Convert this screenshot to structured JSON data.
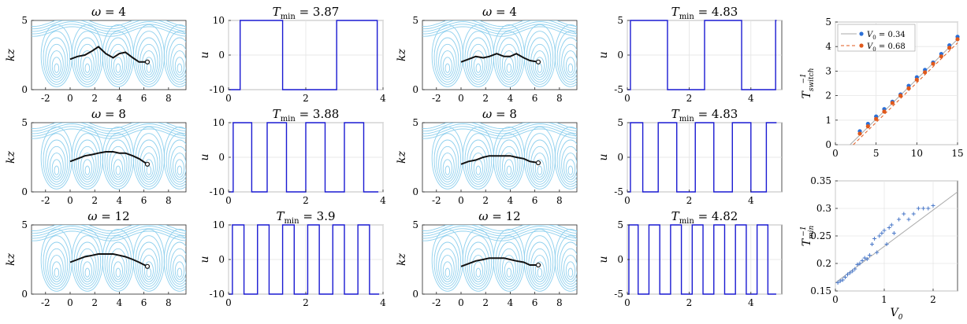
{
  "figure": {
    "title": "",
    "rows": [
      {
        "phase_a": {
          "title": "ω = 4",
          "ylabel": "kz",
          "yticks": [
            "5",
            "0"
          ],
          "xticks": [
            "-2",
            "0",
            "2",
            "4",
            "6",
            "8"
          ]
        },
        "control_a": {
          "title": "T_min = 3.87",
          "ylabel": "u",
          "yticks": [
            "10",
            "0",
            "-10"
          ],
          "xticks": [
            "0",
            "2",
            "4"
          ]
        },
        "phase_b": {
          "title": "ω = 4",
          "ylabel": "kz",
          "yticks": [
            "5",
            "0"
          ],
          "xticks": [
            "-2",
            "0",
            "2",
            "4",
            "6",
            "8"
          ]
        },
        "control_b": {
          "title": "T_min = 4.83",
          "ylabel": "u",
          "yticks": [
            "5",
            "0",
            "-5"
          ],
          "xticks": [
            "0",
            "2",
            "4"
          ]
        }
      },
      {
        "phase_a": {
          "title": "ω = 8",
          "ylabel": "kz",
          "yticks": [
            "5",
            "0"
          ],
          "xticks": [
            "-2",
            "0",
            "2",
            "4",
            "6",
            "8"
          ]
        },
        "control_a": {
          "title": "T_min = 3.88",
          "ylabel": "u",
          "yticks": [
            "10",
            "0",
            "-10"
          ],
          "xticks": [
            "0",
            "2",
            "4"
          ]
        },
        "phase_b": {
          "title": "ω = 8",
          "ylabel": "kz",
          "yticks": [
            "5",
            "0"
          ],
          "xticks": [
            "-2",
            "0",
            "2",
            "4",
            "6",
            "8"
          ]
        },
        "control_b": {
          "title": "T_min = 4.83",
          "ylabel": "u",
          "yticks": [
            "5",
            "0",
            "-5"
          ],
          "xticks": [
            "0",
            "2",
            "4"
          ]
        }
      },
      {
        "phase_a": {
          "title": "ω = 12",
          "ylabel": "kz",
          "yticks": [
            "5",
            "0"
          ],
          "xticks": [
            "-2",
            "0",
            "2",
            "4",
            "6",
            "8"
          ]
        },
        "control_a": {
          "title": "T_min = 3.9",
          "ylabel": "u",
          "yticks": [
            "10",
            "0",
            "-10"
          ],
          "xticks": [
            "0",
            "2",
            "4"
          ]
        },
        "phase_b": {
          "title": "ω = 12",
          "ylabel": "kz",
          "yticks": [
            "5",
            "0"
          ],
          "xticks": [
            "-2",
            "0",
            "2",
            "4",
            "6",
            "8"
          ]
        },
        "control_b": {
          "title": "T_min = 4.82",
          "ylabel": "u",
          "yticks": [
            "5",
            "0",
            "-5"
          ],
          "xticks": [
            "0",
            "2",
            "4"
          ]
        }
      }
    ],
    "colors": {
      "streamline": "#8fd0ee",
      "control": "#1a1ad2",
      "trajectory": "#111111",
      "series1": "#2b6fd6",
      "series2": "#e0591c",
      "fit": "#aaaaaa",
      "scatter": "#4a78c8"
    }
  },
  "chart_data": [
    {
      "type": "line",
      "panel": "phase portraits (kx vs kz), columns 1 and 3",
      "xlim": [
        -3.14,
        9.42
      ],
      "ylim": [
        0,
        5
      ],
      "trajectories": [
        {
          "omega": 4,
          "x": [
            0,
            0.6,
            1.2,
            1.8,
            2.3,
            2.9,
            3.5,
            4.0,
            4.5,
            5.1,
            5.6,
            6.28
          ],
          "y_left": [
            2.2,
            2.4,
            2.5,
            2.8,
            3.1,
            2.6,
            2.3,
            2.6,
            2.7,
            2.3,
            2.0,
            2.0
          ],
          "y_right": [
            2.0,
            2.2,
            2.4,
            2.3,
            2.4,
            2.6,
            2.4,
            2.4,
            2.6,
            2.3,
            2.1,
            2.0
          ]
        },
        {
          "omega": 8,
          "x": [
            0,
            0.6,
            1.2,
            1.8,
            2.3,
            2.9,
            3.5,
            4.0,
            4.5,
            5.1,
            5.6,
            6.28
          ],
          "y_left": [
            2.2,
            2.4,
            2.6,
            2.7,
            2.8,
            2.9,
            2.9,
            2.8,
            2.8,
            2.6,
            2.4,
            2.0
          ],
          "y_right": [
            2.0,
            2.2,
            2.3,
            2.5,
            2.6,
            2.6,
            2.6,
            2.6,
            2.5,
            2.4,
            2.2,
            2.1
          ]
        },
        {
          "omega": 12,
          "x": [
            0,
            0.6,
            1.2,
            1.8,
            2.3,
            2.9,
            3.5,
            4.0,
            4.5,
            5.1,
            5.6,
            6.28
          ],
          "y_left": [
            2.3,
            2.5,
            2.7,
            2.8,
            2.9,
            2.9,
            2.9,
            2.8,
            2.7,
            2.5,
            2.3,
            2.0
          ],
          "y_right": [
            2.0,
            2.2,
            2.4,
            2.5,
            2.6,
            2.6,
            2.6,
            2.5,
            2.4,
            2.3,
            2.1,
            2.1
          ]
        }
      ]
    },
    {
      "type": "line",
      "panel": "bang-bang controls u(t), columns 2 and 4",
      "controls": [
        {
          "title": "T_min = 3.87",
          "amp": 10,
          "xlim": [
            0,
            4
          ],
          "switches": [
            0.3,
            1.4,
            2.8,
            3.85
          ],
          "start": -1,
          "end": 3.87
        },
        {
          "title": "T_min = 3.88",
          "amp": 10,
          "xlim": [
            0,
            4
          ],
          "switches": [
            0.12,
            0.6,
            1.0,
            1.5,
            2.0,
            2.5,
            3.0,
            3.5
          ],
          "start": -1,
          "end": 3.88
        },
        {
          "title": "T_min = 3.9",
          "amp": 10,
          "xlim": [
            0,
            4
          ],
          "switches": [
            0.1,
            0.4,
            0.75,
            1.05,
            1.4,
            1.7,
            2.05,
            2.35,
            2.7,
            3.0,
            3.35,
            3.65
          ],
          "start": -1,
          "end": 3.9
        },
        {
          "title": "T_min = 4.83",
          "amp": 5,
          "xlim": [
            0,
            5
          ],
          "switches": [
            0.1,
            1.3,
            2.5,
            3.7,
            4.8
          ],
          "start": -1,
          "end": 4.83
        },
        {
          "title": "T_min = 4.83",
          "amp": 5,
          "xlim": [
            0,
            5
          ],
          "switches": [
            0.1,
            0.5,
            1.0,
            1.6,
            2.2,
            2.8,
            3.4,
            4.0,
            4.5
          ],
          "start": -1,
          "end": 4.83
        },
        {
          "title": "T_min = 4.82",
          "amp": 5,
          "xlim": [
            0,
            5
          ],
          "switches": [
            0.05,
            0.35,
            0.7,
            1.05,
            1.4,
            1.75,
            2.1,
            2.45,
            2.8,
            3.15,
            3.5,
            3.85,
            4.2,
            4.55
          ],
          "start": -1,
          "end": 4.82
        }
      ]
    },
    {
      "type": "scatter",
      "xlabel": "",
      "ylabel": "T_switch^-1",
      "xlim": [
        0,
        15
      ],
      "ylim": [
        0,
        5
      ],
      "xticks": [
        "0",
        "5",
        "10",
        "15"
      ],
      "yticks": [
        "0",
        "1",
        "2",
        "3",
        "4",
        "5"
      ],
      "legend_position": "top-left",
      "series": [
        {
          "name": "V_0 = 0.34",
          "x": [
            3,
            4,
            5,
            6,
            7,
            8,
            9,
            10,
            11,
            12,
            13,
            14,
            15
          ],
          "y": [
            0.55,
            0.85,
            1.15,
            1.45,
            1.75,
            2.05,
            2.4,
            2.75,
            3.05,
            3.35,
            3.7,
            4.05,
            4.4
          ],
          "fit_x": [
            1.8,
            15
          ],
          "fit_y": [
            0,
            4.3
          ]
        },
        {
          "name": "V_0 = 0.68",
          "x": [
            3,
            4,
            5,
            6,
            7,
            8,
            9,
            10,
            11,
            12,
            13,
            14,
            15
          ],
          "y": [
            0.45,
            0.75,
            1.05,
            1.35,
            1.7,
            2.0,
            2.3,
            2.65,
            2.95,
            3.3,
            3.6,
            3.95,
            4.3
          ],
          "fit_x": [
            2.2,
            15
          ],
          "fit_y": [
            0,
            4.15
          ]
        }
      ]
    },
    {
      "type": "scatter",
      "xlabel": "V_0",
      "ylabel": "T_min^-1",
      "xlim": [
        0,
        2.5
      ],
      "ylim": [
        0.15,
        0.35
      ],
      "xticks": [
        "0",
        "1",
        "2"
      ],
      "yticks": [
        "0.15",
        "0.2",
        "0.25",
        "0.3",
        "0.35"
      ],
      "points_x": [
        0.05,
        0.1,
        0.15,
        0.2,
        0.25,
        0.3,
        0.35,
        0.4,
        0.45,
        0.5,
        0.55,
        0.6,
        0.65,
        0.7,
        0.75,
        0.8,
        0.85,
        0.9,
        0.95,
        1.0,
        1.05,
        1.1,
        1.15,
        1.2,
        1.3,
        1.4,
        1.5,
        1.6,
        1.7,
        1.8,
        1.9,
        2.0
      ],
      "points_y": [
        0.165,
        0.168,
        0.17,
        0.175,
        0.18,
        0.183,
        0.186,
        0.19,
        0.198,
        0.2,
        0.205,
        0.21,
        0.208,
        0.215,
        0.235,
        0.245,
        0.22,
        0.25,
        0.255,
        0.26,
        0.235,
        0.265,
        0.27,
        0.255,
        0.28,
        0.29,
        0.28,
        0.29,
        0.3,
        0.3,
        0.3,
        0.305
      ],
      "fit_x": [
        0,
        2.5
      ],
      "fit_y": [
        0.165,
        0.33
      ]
    }
  ]
}
